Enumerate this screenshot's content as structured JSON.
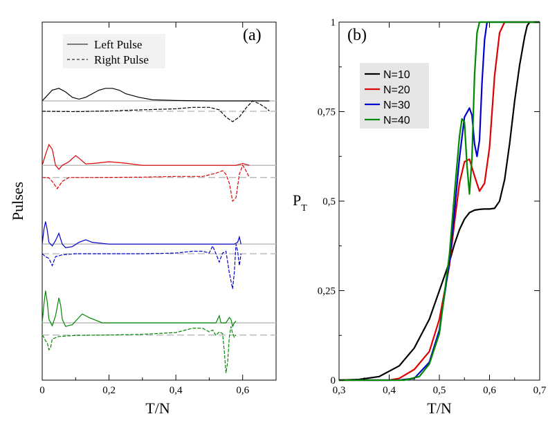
{
  "chart_data": [
    {
      "panel": "(a)",
      "type": "line",
      "xlabel": "T/N",
      "ylabel": "Pulses",
      "xlim": [
        0,
        0.7
      ],
      "x_ticks": [
        "0",
        "0,2",
        "0,4",
        "0,6"
      ],
      "x_tick_values": [
        0,
        0.2,
        0.4,
        0.6
      ],
      "legend": {
        "position": "top-left",
        "entries": [
          {
            "label": "Left Pulse",
            "style": "solid"
          },
          {
            "label": "Right Pulse",
            "style": "dashed"
          }
        ]
      },
      "series": [
        {
          "name": "N=10",
          "color": "#000000",
          "offset": 0.78,
          "xend": 0.68,
          "left": [
            [
              0,
              0.78
            ],
            [
              0.01,
              0.79
            ],
            [
              0.03,
              0.81
            ],
            [
              0.05,
              0.815
            ],
            [
              0.07,
              0.805
            ],
            [
              0.09,
              0.79
            ],
            [
              0.11,
              0.785
            ],
            [
              0.13,
              0.79
            ],
            [
              0.15,
              0.8
            ],
            [
              0.17,
              0.81
            ],
            [
              0.19,
              0.815
            ],
            [
              0.21,
              0.815
            ],
            [
              0.23,
              0.81
            ],
            [
              0.25,
              0.8
            ],
            [
              0.29,
              0.79
            ],
            [
              0.33,
              0.783
            ],
            [
              0.4,
              0.781
            ],
            [
              0.5,
              0.78
            ],
            [
              0.6,
              0.78
            ],
            [
              0.68,
              0.78
            ]
          ],
          "right": [
            [
              0,
              0.751
            ],
            [
              0.1,
              0.75
            ],
            [
              0.2,
              0.752
            ],
            [
              0.3,
              0.755
            ],
            [
              0.4,
              0.758
            ],
            [
              0.45,
              0.762
            ],
            [
              0.5,
              0.762
            ],
            [
              0.53,
              0.755
            ],
            [
              0.55,
              0.735
            ],
            [
              0.57,
              0.722
            ],
            [
              0.59,
              0.735
            ],
            [
              0.61,
              0.76
            ],
            [
              0.63,
              0.78
            ],
            [
              0.65,
              0.772
            ],
            [
              0.67,
              0.76
            ],
            [
              0.68,
              0.752
            ]
          ]
        },
        {
          "name": "N=20",
          "color": "#dd0000",
          "offset": 0.6,
          "xend": 0.62,
          "left": [
            [
              0,
              0.6
            ],
            [
              0.01,
              0.63
            ],
            [
              0.02,
              0.658
            ],
            [
              0.03,
              0.645
            ],
            [
              0.04,
              0.6
            ],
            [
              0.05,
              0.589
            ],
            [
              0.06,
              0.6
            ],
            [
              0.08,
              0.61
            ],
            [
              0.1,
              0.627
            ],
            [
              0.11,
              0.62
            ],
            [
              0.13,
              0.604
            ],
            [
              0.15,
              0.605
            ],
            [
              0.2,
              0.61
            ],
            [
              0.25,
              0.606
            ],
            [
              0.3,
              0.6
            ],
            [
              0.4,
              0.6
            ],
            [
              0.5,
              0.6
            ],
            [
              0.58,
              0.6
            ],
            [
              0.6,
              0.605
            ],
            [
              0.62,
              0.6
            ]
          ],
          "right": [
            [
              0,
              0.566
            ],
            [
              0.02,
              0.565
            ],
            [
              0.03,
              0.555
            ],
            [
              0.045,
              0.535
            ],
            [
              0.06,
              0.555
            ],
            [
              0.08,
              0.566
            ],
            [
              0.15,
              0.566
            ],
            [
              0.3,
              0.567
            ],
            [
              0.4,
              0.569
            ],
            [
              0.48,
              0.569
            ],
            [
              0.52,
              0.578
            ],
            [
              0.54,
              0.585
            ],
            [
              0.55,
              0.575
            ],
            [
              0.56,
              0.55
            ],
            [
              0.57,
              0.5
            ],
            [
              0.58,
              0.51
            ],
            [
              0.59,
              0.575
            ],
            [
              0.6,
              0.6
            ],
            [
              0.61,
              0.585
            ],
            [
              0.62,
              0.566
            ]
          ]
        },
        {
          "name": "N=30",
          "color": "#0000cc",
          "offset": 0.38,
          "xend": 0.595,
          "left": [
            [
              0,
              0.38
            ],
            [
              0.005,
              0.42
            ],
            [
              0.01,
              0.443
            ],
            [
              0.015,
              0.42
            ],
            [
              0.02,
              0.385
            ],
            [
              0.03,
              0.375
            ],
            [
              0.04,
              0.39
            ],
            [
              0.05,
              0.41
            ],
            [
              0.06,
              0.38
            ],
            [
              0.07,
              0.37
            ],
            [
              0.09,
              0.373
            ],
            [
              0.11,
              0.385
            ],
            [
              0.13,
              0.392
            ],
            [
              0.15,
              0.385
            ],
            [
              0.2,
              0.38
            ],
            [
              0.4,
              0.38
            ],
            [
              0.55,
              0.38
            ],
            [
              0.575,
              0.38
            ],
            [
              0.585,
              0.385
            ],
            [
              0.59,
              0.4
            ],
            [
              0.595,
              0.38
            ]
          ],
          "right": [
            [
              0,
              0.353
            ],
            [
              0.01,
              0.345
            ],
            [
              0.02,
              0.34
            ],
            [
              0.03,
              0.32
            ],
            [
              0.04,
              0.345
            ],
            [
              0.06,
              0.35
            ],
            [
              0.1,
              0.353
            ],
            [
              0.2,
              0.353
            ],
            [
              0.3,
              0.353
            ],
            [
              0.4,
              0.355
            ],
            [
              0.45,
              0.36
            ],
            [
              0.48,
              0.36
            ],
            [
              0.5,
              0.355
            ],
            [
              0.51,
              0.375
            ],
            [
              0.52,
              0.353
            ],
            [
              0.53,
              0.33
            ],
            [
              0.54,
              0.355
            ],
            [
              0.55,
              0.36
            ],
            [
              0.56,
              0.3
            ],
            [
              0.57,
              0.255
            ],
            [
              0.575,
              0.3
            ],
            [
              0.58,
              0.38
            ],
            [
              0.585,
              0.36
            ],
            [
              0.59,
              0.32
            ],
            [
              0.595,
              0.353
            ]
          ]
        },
        {
          "name": "N=40",
          "color": "#008800",
          "offset": 0.16,
          "xend": 0.58,
          "left": [
            [
              0,
              0.16
            ],
            [
              0.005,
              0.21
            ],
            [
              0.01,
              0.25
            ],
            [
              0.015,
              0.22
            ],
            [
              0.02,
              0.17
            ],
            [
              0.03,
              0.152
            ],
            [
              0.04,
              0.18
            ],
            [
              0.05,
              0.23
            ],
            [
              0.055,
              0.21
            ],
            [
              0.06,
              0.17
            ],
            [
              0.07,
              0.15
            ],
            [
              0.09,
              0.155
            ],
            [
              0.11,
              0.175
            ],
            [
              0.12,
              0.185
            ],
            [
              0.14,
              0.175
            ],
            [
              0.18,
              0.16
            ],
            [
              0.3,
              0.16
            ],
            [
              0.45,
              0.16
            ],
            [
              0.52,
              0.16
            ],
            [
              0.53,
              0.18
            ],
            [
              0.535,
              0.16
            ],
            [
              0.55,
              0.16
            ],
            [
              0.56,
              0.175
            ],
            [
              0.565,
              0.17
            ],
            [
              0.57,
              0.15
            ],
            [
              0.575,
              0.16
            ],
            [
              0.58,
              0.165
            ]
          ],
          "right": [
            [
              0,
              0.126
            ],
            [
              0.005,
              0.12
            ],
            [
              0.01,
              0.11
            ],
            [
              0.015,
              0.105
            ],
            [
              0.02,
              0.085
            ],
            [
              0.025,
              0.09
            ],
            [
              0.03,
              0.115
            ],
            [
              0.05,
              0.122
            ],
            [
              0.1,
              0.125
            ],
            [
              0.2,
              0.126
            ],
            [
              0.3,
              0.128
            ],
            [
              0.4,
              0.133
            ],
            [
              0.45,
              0.145
            ],
            [
              0.48,
              0.145
            ],
            [
              0.5,
              0.135
            ],
            [
              0.51,
              0.14
            ],
            [
              0.52,
              0.125
            ],
            [
              0.53,
              0.135
            ],
            [
              0.54,
              0.13
            ],
            [
              0.545,
              0.08
            ],
            [
              0.55,
              0.02
            ],
            [
              0.555,
              0.05
            ],
            [
              0.56,
              0.12
            ],
            [
              0.565,
              0.15
            ],
            [
              0.57,
              0.13
            ],
            [
              0.575,
              0.12
            ],
            [
              0.58,
              0.126
            ]
          ]
        }
      ]
    },
    {
      "panel": "(b)",
      "type": "line",
      "xlabel": "T/N",
      "ylabel": "P",
      "ylabel_sub": "T",
      "xlim": [
        0.3,
        0.7
      ],
      "ylim": [
        0,
        1
      ],
      "x_ticks": [
        "0,3",
        "0,4",
        "0,5",
        "0,6",
        "0,7"
      ],
      "x_tick_values": [
        0.3,
        0.4,
        0.5,
        0.6,
        0.7
      ],
      "y_ticks": [
        "0",
        "0,25",
        "0,5",
        "0,75",
        "1"
      ],
      "y_tick_values": [
        0,
        0.25,
        0.5,
        0.75,
        1
      ],
      "legend": {
        "position": "top-left"
      },
      "series": [
        {
          "name": "N=10",
          "color": "#000000",
          "points": [
            [
              0.3,
              0.0
            ],
            [
              0.34,
              0.002
            ],
            [
              0.38,
              0.01
            ],
            [
              0.42,
              0.04
            ],
            [
              0.45,
              0.09
            ],
            [
              0.48,
              0.17
            ],
            [
              0.5,
              0.25
            ],
            [
              0.52,
              0.33
            ],
            [
              0.53,
              0.38
            ],
            [
              0.54,
              0.42
            ],
            [
              0.55,
              0.45
            ],
            [
              0.56,
              0.468
            ],
            [
              0.57,
              0.475
            ],
            [
              0.58,
              0.477
            ],
            [
              0.59,
              0.478
            ],
            [
              0.6,
              0.478
            ],
            [
              0.61,
              0.48
            ],
            [
              0.62,
              0.5
            ],
            [
              0.63,
              0.56
            ],
            [
              0.64,
              0.66
            ],
            [
              0.65,
              0.78
            ],
            [
              0.66,
              0.88
            ],
            [
              0.67,
              0.96
            ],
            [
              0.675,
              0.99
            ],
            [
              0.68,
              1.0
            ],
            [
              0.7,
              1.0
            ]
          ]
        },
        {
          "name": "N=20",
          "color": "#dd0000",
          "points": [
            [
              0.3,
              0.0
            ],
            [
              0.4,
              0.0
            ],
            [
              0.42,
              0.005
            ],
            [
              0.45,
              0.03
            ],
            [
              0.48,
              0.08
            ],
            [
              0.5,
              0.17
            ],
            [
              0.52,
              0.32
            ],
            [
              0.53,
              0.44
            ],
            [
              0.54,
              0.55
            ],
            [
              0.55,
              0.61
            ],
            [
              0.56,
              0.617
            ],
            [
              0.57,
              0.57
            ],
            [
              0.58,
              0.528
            ],
            [
              0.59,
              0.55
            ],
            [
              0.6,
              0.65
            ],
            [
              0.61,
              0.85
            ],
            [
              0.62,
              0.97
            ],
            [
              0.63,
              1.0
            ],
            [
              0.7,
              1.0
            ]
          ]
        },
        {
          "name": "N=30",
          "color": "#0000cc",
          "points": [
            [
              0.3,
              0.0
            ],
            [
              0.42,
              0.0
            ],
            [
              0.45,
              0.005
            ],
            [
              0.48,
              0.05
            ],
            [
              0.5,
              0.14
            ],
            [
              0.52,
              0.33
            ],
            [
              0.53,
              0.47
            ],
            [
              0.54,
              0.62
            ],
            [
              0.55,
              0.735
            ],
            [
              0.56,
              0.76
            ],
            [
              0.565,
              0.74
            ],
            [
              0.57,
              0.66
            ],
            [
              0.575,
              0.625
            ],
            [
              0.58,
              0.67
            ],
            [
              0.585,
              0.83
            ],
            [
              0.59,
              0.95
            ],
            [
              0.595,
              1.0
            ],
            [
              0.7,
              1.0
            ]
          ]
        },
        {
          "name": "N=40",
          "color": "#008800",
          "points": [
            [
              0.3,
              0.0
            ],
            [
              0.43,
              0.0
            ],
            [
              0.46,
              0.01
            ],
            [
              0.48,
              0.045
            ],
            [
              0.5,
              0.13
            ],
            [
              0.52,
              0.35
            ],
            [
              0.53,
              0.52
            ],
            [
              0.54,
              0.68
            ],
            [
              0.545,
              0.73
            ],
            [
              0.55,
              0.72
            ],
            [
              0.555,
              0.6
            ],
            [
              0.56,
              0.52
            ],
            [
              0.565,
              0.62
            ],
            [
              0.57,
              0.85
            ],
            [
              0.575,
              0.97
            ],
            [
              0.58,
              1.0
            ],
            [
              0.7,
              1.0
            ]
          ]
        }
      ]
    }
  ]
}
